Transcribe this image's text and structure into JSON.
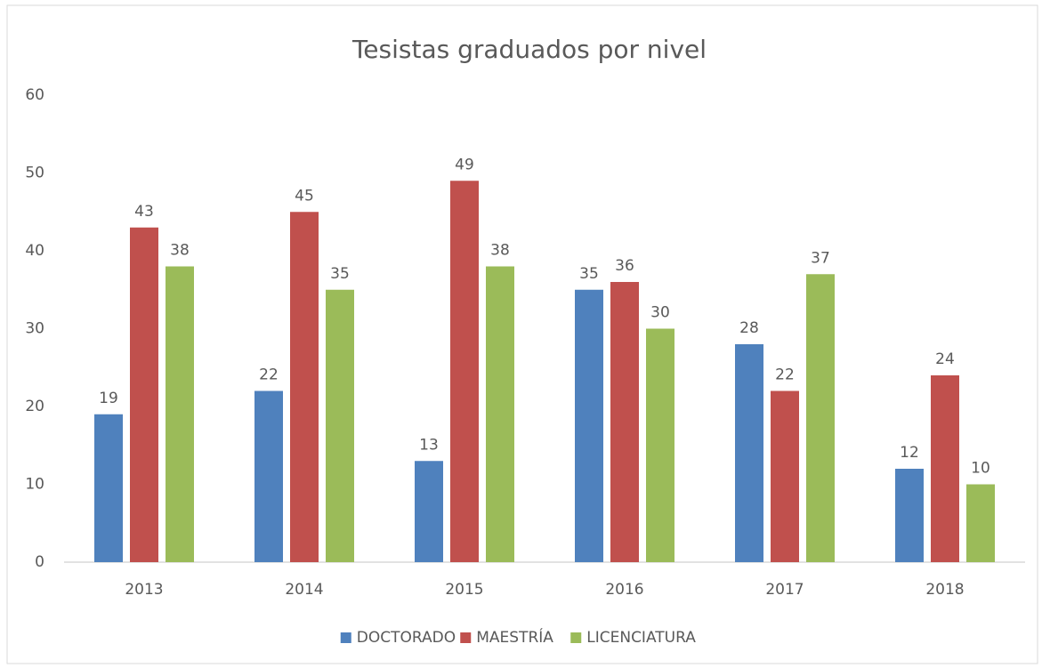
{
  "chart_data": {
    "type": "bar",
    "title": "Tesistas graduados por nivel",
    "categories": [
      "2013",
      "2014",
      "2015",
      "2016",
      "2017",
      "2018"
    ],
    "series": [
      {
        "name": "DOCTORADO",
        "color": "#4f81bd",
        "values": [
          19,
          22,
          13,
          35,
          28,
          12
        ]
      },
      {
        "name": "MAESTRÍA",
        "color": "#c0504d",
        "values": [
          43,
          45,
          49,
          36,
          22,
          24
        ]
      },
      {
        "name": "LICENCIATURA",
        "color": "#9bbb59",
        "values": [
          38,
          35,
          38,
          30,
          37,
          10
        ]
      }
    ],
    "ylim": [
      0,
      60
    ],
    "yticks": [
      0,
      10,
      20,
      30,
      40,
      50,
      60
    ],
    "grid": false,
    "legend": "bottom"
  }
}
